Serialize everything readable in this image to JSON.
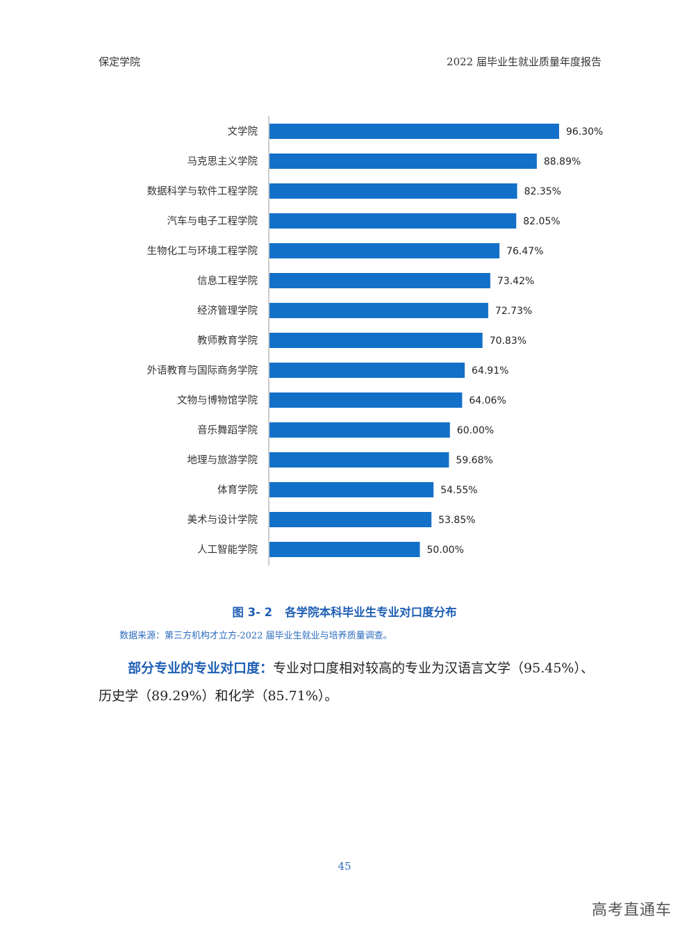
{
  "header": {
    "left": "保定学院",
    "right": "2022 届毕业生就业质量年度报告"
  },
  "chart_data": {
    "type": "bar",
    "orientation": "horizontal",
    "categories": [
      "文学院",
      "马克思主义学院",
      "数据科学与软件工程学院",
      "汽车与电子工程学院",
      "生物化工与环境工程学院",
      "信息工程学院",
      "经济管理学院",
      "教师教育学院",
      "外语教育与国际商务学院",
      "文物与博物馆学院",
      "音乐舞蹈学院",
      "地理与旅游学院",
      "体育学院",
      "美术与设计学院",
      "人工智能学院"
    ],
    "values": [
      96.3,
      88.89,
      82.35,
      82.05,
      76.47,
      73.42,
      72.73,
      70.83,
      64.91,
      64.06,
      60.0,
      59.68,
      54.55,
      53.85,
      50.0
    ],
    "value_labels": [
      "96.30%",
      "88.89%",
      "82.35%",
      "82.05%",
      "76.47%",
      "73.42%",
      "72.73%",
      "70.83%",
      "64.91%",
      "64.06%",
      "60.00%",
      "59.68%",
      "54.55%",
      "53.85%",
      "50.00%"
    ],
    "xlim": [
      0,
      100
    ],
    "bar_color": "#1370c8",
    "grid": false,
    "legend": "none"
  },
  "figure": {
    "number": "图 3- 2",
    "title": "各学院本科毕业生专业对口度分布",
    "source": "数据来源：第三方机构才立方-2022 届毕业生就业与培养质量调查。"
  },
  "paragraph": {
    "lead": "部分专业的专业对口度：",
    "body": "专业对口度相对较高的专业为汉语言文学（95.45%）、历史学（89.29%）和化学（85.71%）。"
  },
  "page_number": "45",
  "watermark": "高考直通车"
}
